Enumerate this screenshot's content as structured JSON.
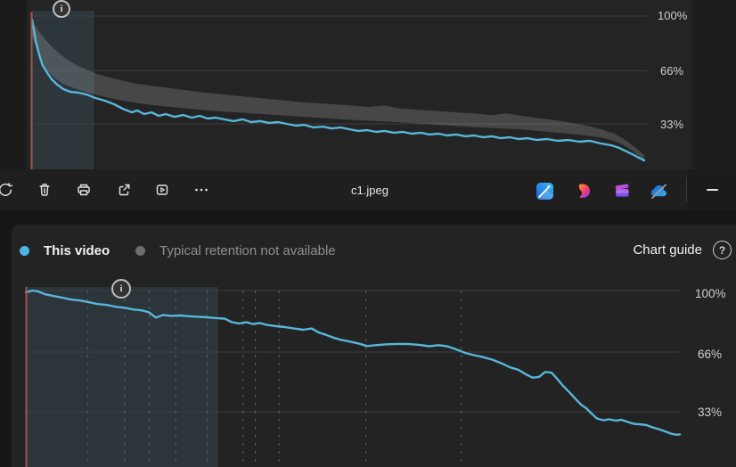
{
  "photo_viewer": {
    "filename": "c1.jpeg",
    "tools": [
      {
        "name": "rotate"
      },
      {
        "name": "delete"
      },
      {
        "name": "print"
      },
      {
        "name": "share"
      },
      {
        "name": "slideshow"
      },
      {
        "name": "more-options"
      }
    ],
    "apps": [
      {
        "name": "edit-image"
      },
      {
        "name": "designer"
      },
      {
        "name": "clipchamp"
      },
      {
        "name": "onedrive-paused"
      }
    ],
    "minimize_name": "collapse-toolbar"
  },
  "retention_panel": {
    "legend": [
      {
        "label": "This video",
        "color": "#4db3e6"
      },
      {
        "label": "Typical retention not available",
        "color": "#6e6e6e"
      }
    ],
    "chart_guide_label": "Chart guide",
    "help_glyph": "?"
  },
  "info_glyph": "i",
  "colors": {
    "accent_line": "#57b6da",
    "typical_band": "rgba(255,255,255,0.16)",
    "intro_highlight": "rgba(98,180,216,0.13)",
    "intro_highlight_edge": "rgba(255,255,255,0.07)",
    "start_marker": "#a8514e",
    "gridline": "#3e3e3e",
    "dashed_guide": "#7a7a7a"
  },
  "chart_data": [
    {
      "id": "photo-preview-retention",
      "type": "line",
      "title": "",
      "xlabel": "",
      "ylabel": "",
      "ylim": [
        0,
        100
      ],
      "grid": "horizontal",
      "legend_position": "none",
      "y_ticks": [
        {
          "value": 100,
          "label": "100%"
        },
        {
          "value": 66,
          "label": "66%"
        },
        {
          "value": 33,
          "label": "33%"
        }
      ],
      "intro_end_frac": 0.1,
      "dashed_guide_fracs": [],
      "band": {
        "name": "typical-retention-range",
        "upper": [
          [
            0,
            97
          ],
          [
            0.01,
            91
          ],
          [
            0.02,
            86
          ],
          [
            0.035,
            80
          ],
          [
            0.05,
            75
          ],
          [
            0.07,
            70
          ],
          [
            0.09,
            66.5
          ],
          [
            0.11,
            63.5
          ],
          [
            0.14,
            60.5
          ],
          [
            0.17,
            58
          ],
          [
            0.2,
            56.5
          ],
          [
            0.24,
            54.5
          ],
          [
            0.28,
            52.5
          ],
          [
            0.32,
            51
          ],
          [
            0.36,
            49.5
          ],
          [
            0.4,
            48
          ],
          [
            0.44,
            46.5
          ],
          [
            0.48,
            45.5
          ],
          [
            0.52,
            44.5
          ],
          [
            0.55,
            43.5
          ],
          [
            0.575,
            44.5
          ],
          [
            0.6,
            42.5
          ],
          [
            0.64,
            41.5
          ],
          [
            0.68,
            40.5
          ],
          [
            0.72,
            39.5
          ],
          [
            0.75,
            38.5
          ],
          [
            0.775,
            39.5
          ],
          [
            0.8,
            38
          ],
          [
            0.83,
            36.5
          ],
          [
            0.86,
            35
          ],
          [
            0.89,
            33
          ],
          [
            0.91,
            31.5
          ],
          [
            0.93,
            29.5
          ],
          [
            0.95,
            27
          ],
          [
            0.965,
            24
          ],
          [
            0.98,
            20
          ],
          [
            0.99,
            17
          ],
          [
            1,
            13.5
          ]
        ],
        "lower": [
          [
            0,
            88
          ],
          [
            0.01,
            76
          ],
          [
            0.02,
            68
          ],
          [
            0.035,
            62
          ],
          [
            0.05,
            58
          ],
          [
            0.07,
            55
          ],
          [
            0.09,
            52.5
          ],
          [
            0.11,
            50.5
          ],
          [
            0.14,
            48
          ],
          [
            0.17,
            46
          ],
          [
            0.2,
            44.5
          ],
          [
            0.24,
            43
          ],
          [
            0.28,
            41.5
          ],
          [
            0.32,
            40.5
          ],
          [
            0.36,
            39.5
          ],
          [
            0.4,
            38.5
          ],
          [
            0.44,
            37.5
          ],
          [
            0.48,
            36.5
          ],
          [
            0.52,
            35.5
          ],
          [
            0.55,
            35
          ],
          [
            0.575,
            34.5
          ],
          [
            0.6,
            34
          ],
          [
            0.64,
            33
          ],
          [
            0.68,
            32
          ],
          [
            0.72,
            31
          ],
          [
            0.75,
            30.5
          ],
          [
            0.775,
            30
          ],
          [
            0.8,
            29.5
          ],
          [
            0.83,
            28.5
          ],
          [
            0.86,
            27.5
          ],
          [
            0.89,
            26.5
          ],
          [
            0.91,
            25.5
          ],
          [
            0.93,
            24.5
          ],
          [
            0.95,
            22.5
          ],
          [
            0.965,
            20
          ],
          [
            0.98,
            16.5
          ],
          [
            0.99,
            13.5
          ],
          [
            1,
            10
          ]
        ]
      },
      "series": [
        {
          "name": "This video",
          "color": "#57b6da",
          "points": [
            [
              0,
              97.8
            ],
            [
              0.006,
              84.5
            ],
            [
              0.012,
              75.6
            ],
            [
              0.017,
              69.5
            ],
            [
              0.025,
              64.6
            ],
            [
              0.032,
              60.7
            ],
            [
              0.041,
              57.4
            ],
            [
              0.051,
              54.6
            ],
            [
              0.063,
              52.9
            ],
            [
              0.076,
              52.4
            ],
            [
              0.089,
              51.3
            ],
            [
              0.103,
              49.1
            ],
            [
              0.119,
              47.4
            ],
            [
              0.134,
              45.2
            ],
            [
              0.148,
              42.4
            ],
            [
              0.163,
              40.2
            ],
            [
              0.172,
              41.3
            ],
            [
              0.183,
              39.1
            ],
            [
              0.195,
              40.2
            ],
            [
              0.207,
              38
            ],
            [
              0.218,
              39.1
            ],
            [
              0.233,
              37.4
            ],
            [
              0.247,
              38.5
            ],
            [
              0.261,
              36.9
            ],
            [
              0.274,
              38
            ],
            [
              0.287,
              36.3
            ],
            [
              0.3,
              36.9
            ],
            [
              0.314,
              35.8
            ],
            [
              0.329,
              34.7
            ],
            [
              0.344,
              35.8
            ],
            [
              0.358,
              34.1
            ],
            [
              0.373,
              34.7
            ],
            [
              0.387,
              33.6
            ],
            [
              0.402,
              34.1
            ],
            [
              0.416,
              33
            ],
            [
              0.431,
              31.9
            ],
            [
              0.445,
              32.4
            ],
            [
              0.46,
              30.8
            ],
            [
              0.475,
              31.3
            ],
            [
              0.489,
              30.2
            ],
            [
              0.504,
              30.8
            ],
            [
              0.518,
              29.7
            ],
            [
              0.533,
              28.6
            ],
            [
              0.547,
              29.1
            ],
            [
              0.562,
              28
            ],
            [
              0.576,
              28.6
            ],
            [
              0.591,
              27.5
            ],
            [
              0.606,
              28
            ],
            [
              0.62,
              26.9
            ],
            [
              0.635,
              27.5
            ],
            [
              0.649,
              26.4
            ],
            [
              0.664,
              26.9
            ],
            [
              0.678,
              25.8
            ],
            [
              0.693,
              26.4
            ],
            [
              0.708,
              25.3
            ],
            [
              0.722,
              25.8
            ],
            [
              0.737,
              24.7
            ],
            [
              0.751,
              25.3
            ],
            [
              0.766,
              24.1
            ],
            [
              0.78,
              24.7
            ],
            [
              0.795,
              23.6
            ],
            [
              0.809,
              24.1
            ],
            [
              0.824,
              23
            ],
            [
              0.841,
              23.6
            ],
            [
              0.859,
              22.5
            ],
            [
              0.876,
              23
            ],
            [
              0.894,
              21.9
            ],
            [
              0.911,
              22.5
            ],
            [
              0.929,
              20.8
            ],
            [
              0.946,
              19.7
            ],
            [
              0.959,
              18.1
            ],
            [
              0.971,
              15.9
            ],
            [
              0.983,
              13.7
            ],
            [
              0.991,
              12
            ],
            [
              1,
              10.3
            ]
          ]
        }
      ]
    },
    {
      "id": "audience-retention",
      "type": "line",
      "title": "",
      "xlabel": "",
      "ylabel": "",
      "ylim": [
        0,
        100
      ],
      "grid": "horizontal+dashed-vertical",
      "legend_position": "top-left",
      "y_ticks": [
        {
          "value": 100,
          "label": "100%"
        },
        {
          "value": 66,
          "label": "66%"
        },
        {
          "value": 33,
          "label": "33%"
        }
      ],
      "intro_end_frac": 0.293,
      "dashed_guide_fracs": [
        0.094,
        0.151,
        0.189,
        0.229,
        0.277,
        0.332,
        0.351,
        0.387,
        0.52,
        0.666
      ],
      "band": null,
      "series": [
        {
          "name": "This video",
          "color": "#57b6da",
          "points": [
            [
              0,
              99
            ],
            [
              0.01,
              100
            ],
            [
              0.019,
              99.5
            ],
            [
              0.029,
              98
            ],
            [
              0.042,
              97
            ],
            [
              0.056,
              96
            ],
            [
              0.069,
              95
            ],
            [
              0.083,
              94.5
            ],
            [
              0.097,
              93.5
            ],
            [
              0.11,
              92.5
            ],
            [
              0.124,
              92
            ],
            [
              0.138,
              91
            ],
            [
              0.151,
              90.5
            ],
            [
              0.165,
              89.5
            ],
            [
              0.178,
              89
            ],
            [
              0.188,
              88
            ],
            [
              0.199,
              85
            ],
            [
              0.21,
              86.5
            ],
            [
              0.222,
              86
            ],
            [
              0.236,
              86.2
            ],
            [
              0.249,
              85.8
            ],
            [
              0.263,
              85.5
            ],
            [
              0.277,
              85.2
            ],
            [
              0.29,
              84.8
            ],
            [
              0.304,
              84.5
            ],
            [
              0.315,
              82.5
            ],
            [
              0.326,
              81.8
            ],
            [
              0.337,
              82.5
            ],
            [
              0.347,
              81.5
            ],
            [
              0.358,
              82
            ],
            [
              0.369,
              81
            ],
            [
              0.383,
              80.3
            ],
            [
              0.396,
              79.8
            ],
            [
              0.41,
              79
            ],
            [
              0.424,
              78.3
            ],
            [
              0.437,
              79
            ],
            [
              0.448,
              76.8
            ],
            [
              0.459,
              75.5
            ],
            [
              0.47,
              74
            ],
            [
              0.481,
              72.8
            ],
            [
              0.495,
              71.8
            ],
            [
              0.508,
              70.8
            ],
            [
              0.522,
              69.3
            ],
            [
              0.535,
              69.8
            ],
            [
              0.552,
              70.3
            ],
            [
              0.568,
              70.5
            ],
            [
              0.584,
              70.5
            ],
            [
              0.601,
              70
            ],
            [
              0.617,
              69.2
            ],
            [
              0.631,
              69.8
            ],
            [
              0.644,
              69.2
            ],
            [
              0.658,
              67.5
            ],
            [
              0.672,
              65.5
            ],
            [
              0.685,
              64.3
            ],
            [
              0.699,
              63.2
            ],
            [
              0.713,
              61.8
            ],
            [
              0.726,
              60
            ],
            [
              0.74,
              57.6
            ],
            [
              0.753,
              56.2
            ],
            [
              0.764,
              53.8
            ],
            [
              0.775,
              51.8
            ],
            [
              0.785,
              52.3
            ],
            [
              0.794,
              55
            ],
            [
              0.804,
              54.6
            ],
            [
              0.813,
              51
            ],
            [
              0.821,
              47.5
            ],
            [
              0.831,
              43.8
            ],
            [
              0.841,
              39.9
            ],
            [
              0.849,
              36.9
            ],
            [
              0.857,
              34.9
            ],
            [
              0.865,
              32
            ],
            [
              0.873,
              29.3
            ],
            [
              0.883,
              28.3
            ],
            [
              0.892,
              28.8
            ],
            [
              0.902,
              28.1
            ],
            [
              0.911,
              28.5
            ],
            [
              0.921,
              27.3
            ],
            [
              0.93,
              26.3
            ],
            [
              0.94,
              26
            ],
            [
              0.949,
              25.6
            ],
            [
              0.959,
              24.3
            ],
            [
              0.969,
              23.2
            ],
            [
              0.978,
              22
            ],
            [
              0.986,
              21
            ],
            [
              0.995,
              20.3
            ],
            [
              1,
              20.5
            ]
          ]
        }
      ]
    }
  ]
}
